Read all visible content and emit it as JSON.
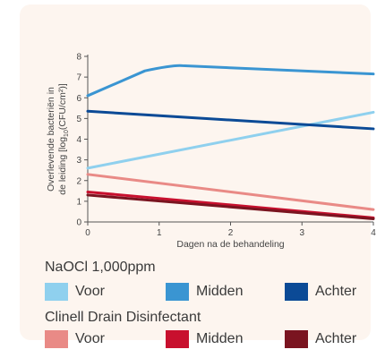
{
  "colors": {
    "card_bg": "#fdf5ef",
    "axis": "#555555"
  },
  "chart_data": {
    "type": "line",
    "xlabel": "Dagen na de behandeling",
    "ylabel_line1": "Overlevende bacteriën in",
    "ylabel_line2": "de leiding [log",
    "ylabel_sub": "10",
    "ylabel_end": "(CFU/cm²)]",
    "xlim": [
      0,
      4
    ],
    "ylim": [
      0,
      8
    ],
    "xticks": [
      "0",
      "1",
      "2",
      "3",
      "4"
    ],
    "yticks": [
      "0",
      "1",
      "2",
      "3",
      "4",
      "5",
      "6",
      "7",
      "8"
    ],
    "grid": false,
    "series": [
      {
        "name": "Voor",
        "group": 0,
        "color": "#8fd0ee",
        "x": [
          0,
          4
        ],
        "y": [
          2.6,
          5.3
        ]
      },
      {
        "name": "Midden",
        "group": 0,
        "color": "#3a95d2",
        "x": [
          0,
          0.8,
          1.2,
          4
        ],
        "y": [
          6.1,
          7.3,
          7.55,
          7.15
        ]
      },
      {
        "name": "Achter",
        "group": 0,
        "color": "#0b4a96",
        "x": [
          0,
          4
        ],
        "y": [
          5.35,
          4.5
        ]
      },
      {
        "name": "Voor",
        "group": 1,
        "color": "#e98a86",
        "x": [
          0,
          4
        ],
        "y": [
          2.3,
          0.6
        ]
      },
      {
        "name": "Midden",
        "group": 1,
        "color": "#c8102e",
        "x": [
          0,
          4
        ],
        "y": [
          1.45,
          0.2
        ]
      },
      {
        "name": "Achter",
        "group": 1,
        "color": "#7a1420",
        "x": [
          0,
          4
        ],
        "y": [
          1.3,
          0.15
        ]
      }
    ]
  },
  "legend": {
    "groups": [
      {
        "title": "NaOCl 1,000ppm",
        "items": [
          {
            "label": "Voor",
            "color": "#8fd0ee"
          },
          {
            "label": "Midden",
            "color": "#3a95d2"
          },
          {
            "label": "Achter",
            "color": "#0b4a96"
          }
        ]
      },
      {
        "title": "Clinell Drain Disinfectant",
        "items": [
          {
            "label": "Voor",
            "color": "#e98a86"
          },
          {
            "label": "Midden",
            "color": "#c8102e"
          },
          {
            "label": "Achter",
            "color": "#7a1420"
          }
        ]
      }
    ]
  }
}
